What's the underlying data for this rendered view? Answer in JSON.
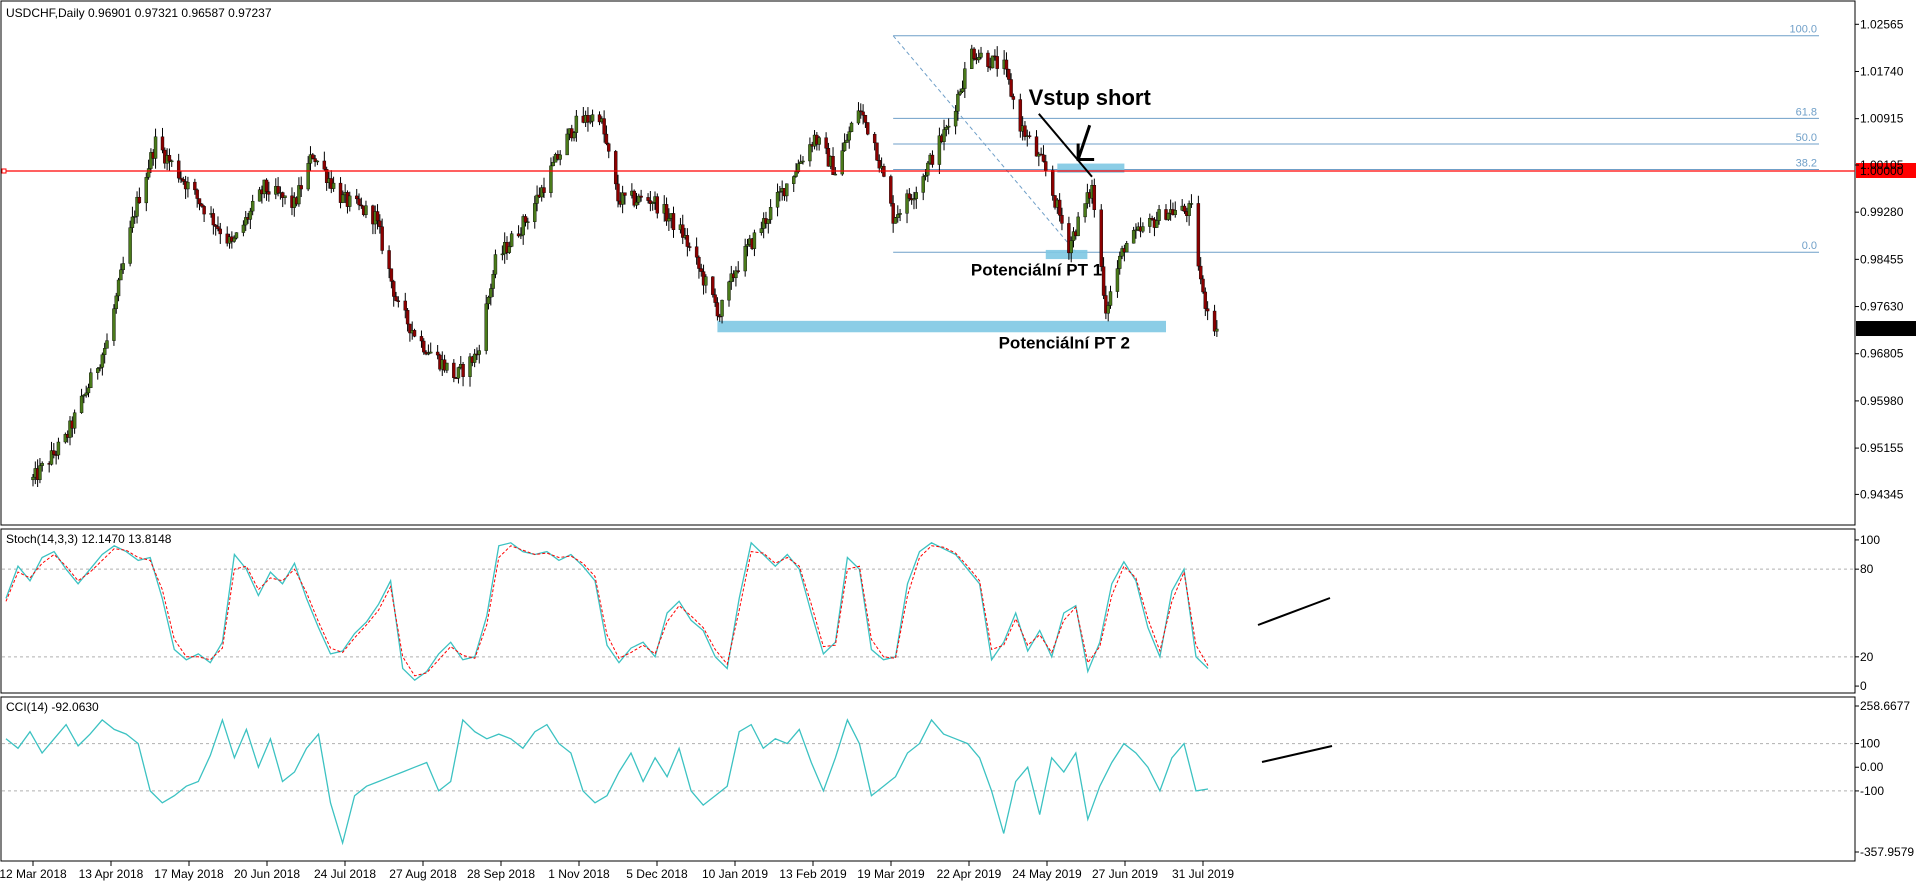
{
  "symbol_header": "USDCHF,Daily  0.96901 0.97321 0.96587 0.97237",
  "colors": {
    "bull": "#4a7a1a",
    "bear": "#8b0000",
    "wick": "#000000",
    "zone": "#7ec8e3",
    "fib": "#6f9fc8",
    "red_line": "#ff0000",
    "stoch_main": "#3cc2c2",
    "stoch_signal": "#ff0000",
    "cci": "#3cc2c2",
    "grid_dash": "#b0b0b0"
  },
  "chart_data": [
    {
      "type": "candlestick",
      "title": "USDCHF,Daily  0.96901 0.97321 0.96587 0.97237",
      "ylim": [
        0.9395,
        1.0285
      ],
      "y_ticks": [
        "1.02565",
        "1.01740",
        "1.00915",
        "1.00105",
        "0.99280",
        "0.98455",
        "0.97630",
        "0.96805",
        "0.95980",
        "0.95155",
        "0.94345"
      ],
      "x_ticks": [
        "12 Mar 2018",
        "13 Apr 2018",
        "17 May 2018",
        "20 Jun 2018",
        "24 Jul 2018",
        "27 Aug 2018",
        "28 Sep 2018",
        "1 Nov 2018",
        "5 Dec 2018",
        "10 Jan 2019",
        "13 Feb 2019",
        "19 Mar 2019",
        "22 Apr 2019",
        "24 May 2019",
        "27 Jun 2019",
        "31 Jul 2019"
      ],
      "price_path_knots": [
        [
          "12 Mar 2018",
          0.946
        ],
        [
          "26 Mar 2018",
          0.953
        ],
        [
          "13 Apr 2018",
          0.97
        ],
        [
          "25 Apr 2018",
          0.993
        ],
        [
          "4 May 2018",
          1.005
        ],
        [
          "17 May 2018",
          0.998
        ],
        [
          "6 Jun 2018",
          0.987
        ],
        [
          "20 Jun 2018",
          0.997
        ],
        [
          "3 Jul 2018",
          0.994
        ],
        [
          "11 Jul 2018",
          1.003
        ],
        [
          "24 Jul 2018",
          0.995
        ],
        [
          "7 Aug 2018",
          0.992
        ],
        [
          "17 Aug 2018",
          0.976
        ],
        [
          "27 Aug 2018",
          0.97
        ],
        [
          "11 Sep 2018",
          0.964
        ],
        [
          "20 Sep 2018",
          0.968
        ],
        [
          "28 Sep 2018",
          0.984
        ],
        [
          "12 Oct 2018",
          0.992
        ],
        [
          "1 Nov 2018",
          1.008
        ],
        [
          "12 Nov 2018",
          1.01
        ],
        [
          "20 Nov 2018",
          0.995
        ],
        [
          "5 Dec 2018",
          0.995
        ],
        [
          "18 Dec 2018",
          0.989
        ],
        [
          "3 Jan 2019",
          0.975
        ],
        [
          "10 Jan 2019",
          0.983
        ],
        [
          "25 Jan 2019",
          0.993
        ],
        [
          "13 Feb 2019",
          1.006
        ],
        [
          "22 Feb 2019",
          1.0
        ],
        [
          "4 Mar 2019",
          1.011
        ],
        [
          "11 Mar 2019",
          1.005
        ],
        [
          "19 Mar 2019",
          0.992
        ],
        [
          "29 Mar 2019",
          0.997
        ],
        [
          "12 Apr 2019",
          1.008
        ],
        [
          "22 Apr 2019",
          1.021
        ],
        [
          "6 May 2019",
          1.018
        ],
        [
          "13 May 2019",
          1.008
        ],
        [
          "24 May 2019",
          1.0
        ],
        [
          "3 Jun 2019",
          0.987
        ],
        [
          "13 Jun 2019",
          0.997
        ],
        [
          "19 Jun 2019",
          0.976
        ],
        [
          "27 Jun 2019",
          0.987
        ],
        [
          "15 Jul 2019",
          0.993
        ],
        [
          "26 Jul 2019",
          0.993
        ],
        [
          "31 Jul 2019",
          0.978
        ],
        [
          "6 Aug 2019",
          0.9724
        ]
      ],
      "last_close": "0.97237",
      "horizontal_line": {
        "value": 1.0,
        "label": "1.00000"
      },
      "fibonacci": {
        "from": {
          "date": "19 Mar 2019",
          "price": 1.02365
        },
        "to": {
          "date": "6 Jun 2019",
          "price": 0.9858
        },
        "levels": [
          {
            "label": "100.0",
            "value": 1.02365
          },
          {
            "label": "61.8",
            "value": 1.00919
          },
          {
            "label": "50.0",
            "value": 1.00473
          },
          {
            "label": "38.2",
            "value": 1.00026
          },
          {
            "label": "0.0",
            "value": 0.9858
          }
        ]
      },
      "zones": [
        {
          "from": "29 May 2019",
          "to": "27 Jun 2019",
          "top": 1.0013,
          "bottom": 0.9997
        },
        {
          "from": "24 May 2019",
          "to": "11 Jun 2019",
          "top": 0.9862,
          "bottom": 0.9846
        },
        {
          "from": "2 Jan 2019",
          "to": "15 Jul 2019",
          "top": 0.9738,
          "bottom": 0.9718
        }
      ],
      "annotations": [
        {
          "text": "Vstup short",
          "date": "12 Jun 2019",
          "price": 1.0115
        },
        {
          "text": "Potenciální PT 1",
          "date": "20 May 2019",
          "price": 0.9817
        },
        {
          "text": "Potenciální PT 2",
          "date": "1 Jun 2019",
          "price": 0.969
        }
      ],
      "trendline": {
        "from": {
          "date": "21 May 2019",
          "price": 1.01
        },
        "to": {
          "date": "13 Jun 2019",
          "price": 0.999
        }
      },
      "entry_arrow": {
        "from": {
          "date": "12 Jun 2019",
          "price": 1.008
        },
        "to": {
          "date": "7 Jun 2019",
          "price": 1.002
        }
      }
    },
    {
      "type": "line",
      "title": "Stoch(14,3,3) 12.1470 13.8148",
      "ylim": [
        -2,
        102
      ],
      "y_ticks": [
        "100",
        "80",
        "20",
        "0"
      ],
      "levels": [
        80,
        20
      ],
      "series": [
        {
          "values": [
            60,
            82,
            72,
            88,
            92,
            80,
            70,
            80,
            90,
            96,
            92,
            86,
            88,
            60,
            25,
            18,
            22,
            16,
            30,
            90,
            80,
            62,
            78,
            70,
            84,
            60,
            40,
            22,
            24,
            36,
            44,
            56,
            72,
            12,
            4,
            10,
            22,
            30,
            18,
            20,
            48,
            96,
            98,
            92,
            90,
            92,
            86,
            90,
            82,
            72,
            28,
            16,
            26,
            30,
            20,
            50,
            58,
            45,
            38,
            20,
            12,
            60,
            98,
            90,
            82,
            90,
            80,
            50,
            22,
            30,
            88,
            80,
            25,
            18,
            20,
            70,
            92,
            98,
            94,
            90,
            80,
            70,
            18,
            30,
            50,
            24,
            38,
            20,
            50,
            55,
            10,
            30,
            70,
            85,
            72,
            40,
            20,
            65,
            80,
            20,
            12
          ]
        },
        {
          "values": [
            58,
            78,
            74,
            84,
            90,
            82,
            72,
            78,
            86,
            94,
            93,
            88,
            86,
            66,
            32,
            20,
            20,
            18,
            26,
            80,
            82,
            66,
            74,
            72,
            80,
            64,
            44,
            26,
            23,
            33,
            42,
            52,
            68,
            20,
            7,
            9,
            18,
            27,
            21,
            19,
            42,
            88,
            96,
            93,
            90,
            91,
            88,
            89,
            84,
            75,
            35,
            19,
            23,
            28,
            22,
            44,
            55,
            48,
            40,
            25,
            15,
            52,
            92,
            91,
            84,
            88,
            82,
            56,
            27,
            28,
            80,
            82,
            32,
            20,
            19,
            62,
            88,
            96,
            95,
            91,
            82,
            72,
            25,
            28,
            46,
            28,
            35,
            23,
            45,
            54,
            16,
            27,
            62,
            82,
            74,
            46,
            24,
            58,
            78,
            28,
            14
          ]
        }
      ]
    },
    {
      "type": "line",
      "title": "CCI(14) -92.0630",
      "ylim": [
        -357.9579,
        258.6677
      ],
      "y_ticks": [
        "258.6677",
        "100",
        "0.00",
        "-100",
        "-357.9579"
      ],
      "levels": [
        100,
        -100
      ],
      "series": [
        {
          "values": [
            120,
            80,
            150,
            60,
            120,
            180,
            90,
            140,
            200,
            160,
            140,
            100,
            -100,
            -150,
            -120,
            -80,
            -60,
            50,
            200,
            40,
            160,
            0,
            120,
            -60,
            -20,
            80,
            140,
            -150,
            -320,
            -120,
            -80,
            -60,
            -40,
            -20,
            0,
            20,
            -100,
            -60,
            200,
            150,
            120,
            140,
            120,
            80,
            150,
            180,
            100,
            60,
            -100,
            -150,
            -120,
            -20,
            60,
            -60,
            40,
            -40,
            80,
            -100,
            -160,
            -120,
            -80,
            150,
            180,
            80,
            120,
            100,
            160,
            20,
            -100,
            40,
            200,
            100,
            -120,
            -80,
            -40,
            60,
            100,
            200,
            140,
            120,
            100,
            40,
            -100,
            -280,
            -60,
            0,
            -200,
            40,
            -20,
            60,
            -220,
            -80,
            20,
            100,
            60,
            0,
            -100,
            40,
            100,
            -100,
            -92
          ]
        }
      ]
    }
  ]
}
